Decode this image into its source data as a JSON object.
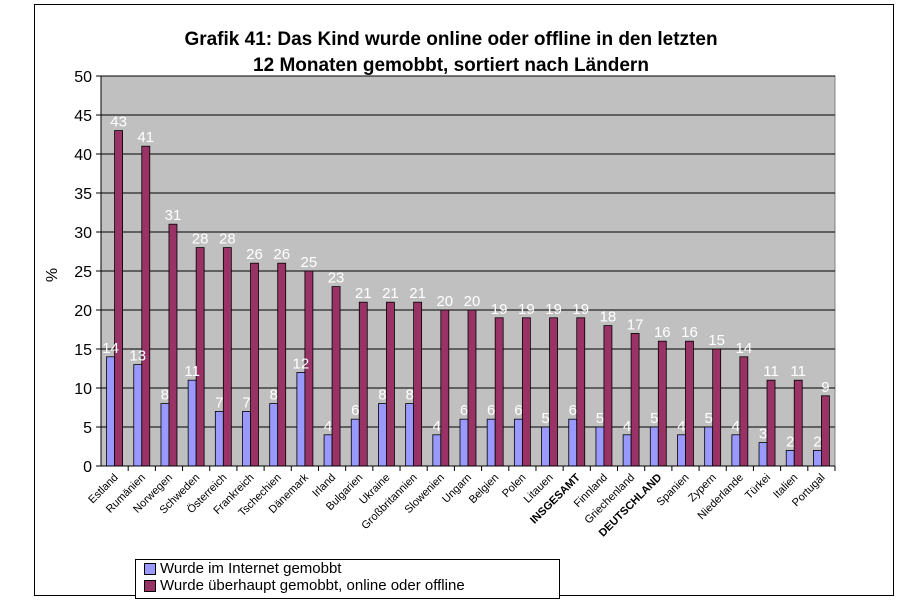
{
  "chart_data": {
    "type": "bar",
    "title_lines": [
      "Grafik 41: Das Kind wurde online oder offline in den letzten",
      "12 Monaten gemobbt, sortiert nach Ländern"
    ],
    "ylabel": "%",
    "ylim": [
      0,
      50
    ],
    "yticks": [
      0,
      5,
      10,
      15,
      20,
      25,
      30,
      35,
      40,
      45,
      50
    ],
    "grid": true,
    "legend_position": "bottom-left",
    "plot_background": "#c0c0c0",
    "categories": [
      "Estland",
      "Rumänien",
      "Norwegen",
      "Schweden",
      "Österreich",
      "Frankreich",
      "Tschechien",
      "Dänemark",
      "Irland",
      "Bulgarien",
      "Ukraine",
      "Großbritannien",
      "Slowenien",
      "Ungarn",
      "Belgien",
      "Polen",
      "Litauen",
      "INSGESAMT",
      "Finnland",
      "Griechenland",
      "DEUTSCHLAND",
      "Spanien",
      "Zypern",
      "Niederlande",
      "Türkei",
      "Italien",
      "Portugal"
    ],
    "bold_categories": [
      "INSGESAMT",
      "DEUTSCHLAND"
    ],
    "series": [
      {
        "name": "Wurde im Internet gemobbt",
        "color": "#9999ff",
        "values": [
          14,
          13,
          8,
          11,
          7,
          7,
          8,
          12,
          4,
          6,
          8,
          8,
          4,
          6,
          6,
          6,
          5,
          6,
          5,
          4,
          5,
          4,
          5,
          4,
          3,
          2,
          2
        ]
      },
      {
        "name": "Wurde überhaupt gemobbt, online oder offline",
        "color": "#993366",
        "values": [
          43,
          41,
          31,
          28,
          28,
          26,
          26,
          25,
          23,
          21,
          21,
          21,
          20,
          20,
          19,
          19,
          19,
          19,
          18,
          17,
          16,
          16,
          15,
          14,
          11,
          11,
          9
        ]
      }
    ]
  }
}
